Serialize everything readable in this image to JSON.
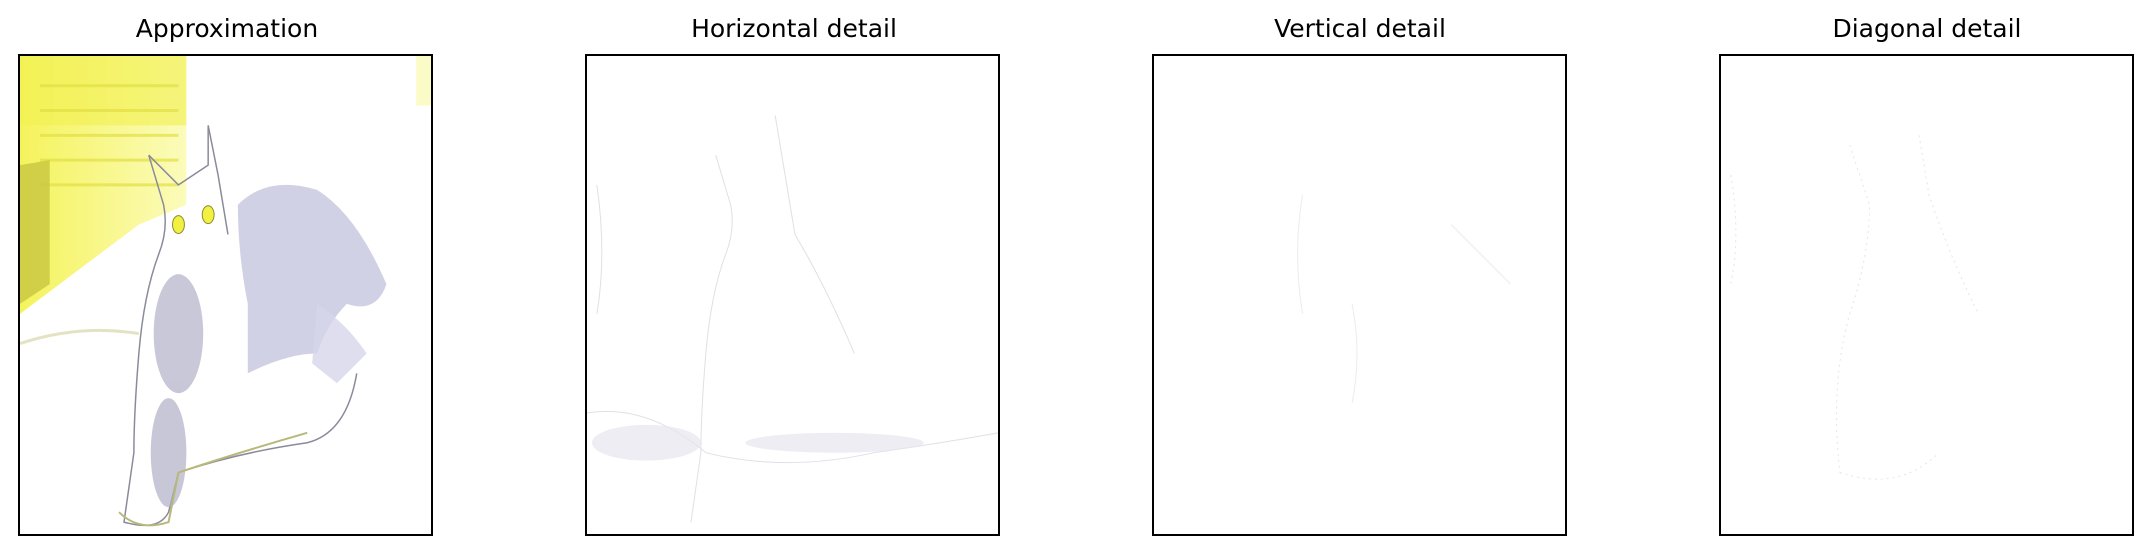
{
  "figure": {
    "panels": [
      {
        "title": "Approximation",
        "content": "cat-photo-approximation"
      },
      {
        "title": "Horizontal detail",
        "content": "cat-photo-horizontal-detail"
      },
      {
        "title": "Vertical detail",
        "content": "cat-photo-vertical-detail"
      },
      {
        "title": "Diagonal detail",
        "content": "cat-photo-diagonal-detail"
      }
    ],
    "colors": {
      "frame": "#000000",
      "highlight_yellow": "#f4f24a",
      "shadow_lavender": "#c9c9e0",
      "olive": "#b8b87a"
    }
  }
}
